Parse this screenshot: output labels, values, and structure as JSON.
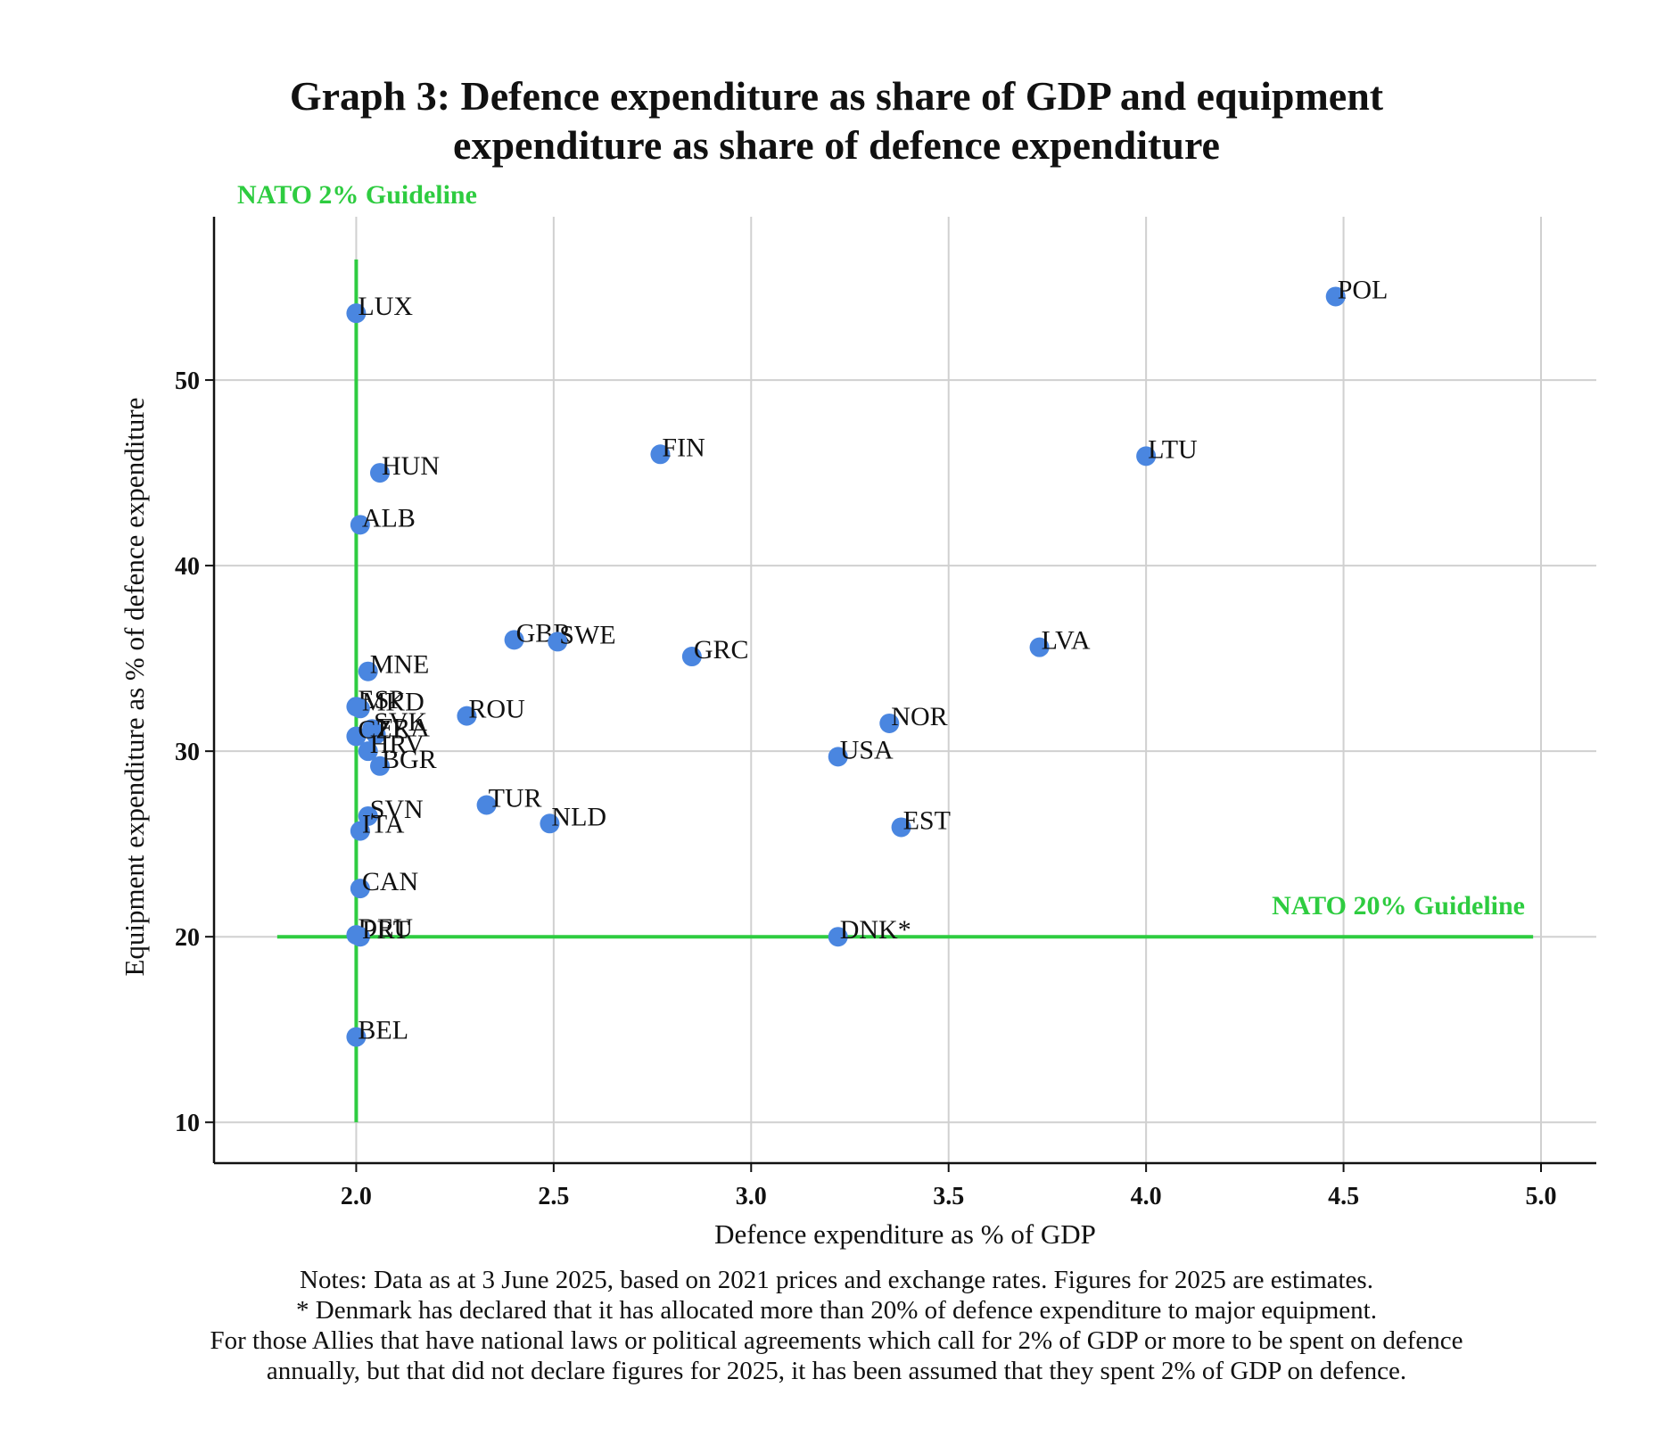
{
  "chart_data": {
    "type": "scatter",
    "title_lines": [
      "Graph 3: Defence expenditure as share of GDP and equipment",
      "expenditure as share of defence expenditure"
    ],
    "xlabel": "Defence expenditure as % of GDP",
    "ylabel": "Equipment expenditure as % of defence expenditure",
    "xlim": [
      1.64,
      5.14
    ],
    "ylim": [
      7.8,
      58.8
    ],
    "xticks": [
      "2.0",
      "2.5",
      "3.0",
      "3.5",
      "4.0",
      "4.5",
      "5.0"
    ],
    "yticks": [
      "10",
      "20",
      "30",
      "40",
      "50"
    ],
    "grid": true,
    "point_color": "#4a86e0",
    "guideline_color": "#2ecc40",
    "guidelines": {
      "vertical": {
        "label": "NATO 2% Guideline",
        "x": 2.0,
        "y_range": [
          10,
          56.5
        ]
      },
      "horizontal": {
        "label": "NATO 20% Guideline",
        "y": 20,
        "x_range": [
          1.8,
          4.98
        ]
      }
    },
    "points": [
      {
        "label": "POL",
        "x": 4.48,
        "y": 54.5
      },
      {
        "label": "LUX",
        "x": 2.0,
        "y": 53.6
      },
      {
        "label": "FIN",
        "x": 2.77,
        "y": 46.0
      },
      {
        "label": "LTU",
        "x": 4.0,
        "y": 45.9
      },
      {
        "label": "HUN",
        "x": 2.06,
        "y": 45.0
      },
      {
        "label": "ALB",
        "x": 2.01,
        "y": 42.2
      },
      {
        "label": "GBR",
        "x": 2.4,
        "y": 36.0
      },
      {
        "label": "SWE",
        "x": 2.51,
        "y": 35.9
      },
      {
        "label": "LVA",
        "x": 3.73,
        "y": 35.6
      },
      {
        "label": "GRC",
        "x": 2.85,
        "y": 35.1
      },
      {
        "label": "MNE",
        "x": 2.03,
        "y": 34.3
      },
      {
        "label": "ESP",
        "x": 2.0,
        "y": 32.4
      },
      {
        "label": "MKD",
        "x": 2.01,
        "y": 32.3
      },
      {
        "label": "ROU",
        "x": 2.28,
        "y": 31.9
      },
      {
        "label": "NOR",
        "x": 3.35,
        "y": 31.5
      },
      {
        "label": "SVK",
        "x": 2.04,
        "y": 31.2
      },
      {
        "label": "FRA",
        "x": 2.05,
        "y": 30.9
      },
      {
        "label": "CZE",
        "x": 2.0,
        "y": 30.8
      },
      {
        "label": "HRV",
        "x": 2.03,
        "y": 30.0
      },
      {
        "label": "USA",
        "x": 3.22,
        "y": 29.7
      },
      {
        "label": "BGR",
        "x": 2.06,
        "y": 29.2
      },
      {
        "label": "TUR",
        "x": 2.33,
        "y": 27.1
      },
      {
        "label": "SVN",
        "x": 2.03,
        "y": 26.5
      },
      {
        "label": "NLD",
        "x": 2.49,
        "y": 26.1
      },
      {
        "label": "EST",
        "x": 3.38,
        "y": 25.9
      },
      {
        "label": "ITA",
        "x": 2.01,
        "y": 25.7
      },
      {
        "label": "CAN",
        "x": 2.01,
        "y": 22.6
      },
      {
        "label": "DEU",
        "x": 2.0,
        "y": 20.1
      },
      {
        "label": "PRT",
        "x": 2.01,
        "y": 20.0
      },
      {
        "label": "DNK*",
        "x": 3.22,
        "y": 20.0
      },
      {
        "label": "BEL",
        "x": 2.0,
        "y": 14.6
      }
    ]
  },
  "notes": [
    "Notes: Data as at 3 June 2025, based on 2021 prices and exchange rates. Figures for 2025 are estimates.",
    "* Denmark has declared that it has allocated more than 20% of defence expenditure to major equipment.",
    "For those Allies that have national laws or political agreements which call for 2% of GDP or more to be spent on defence",
    "annually, but that did not declare figures for 2025, it has been assumed that they spent 2% of GDP on defence."
  ]
}
